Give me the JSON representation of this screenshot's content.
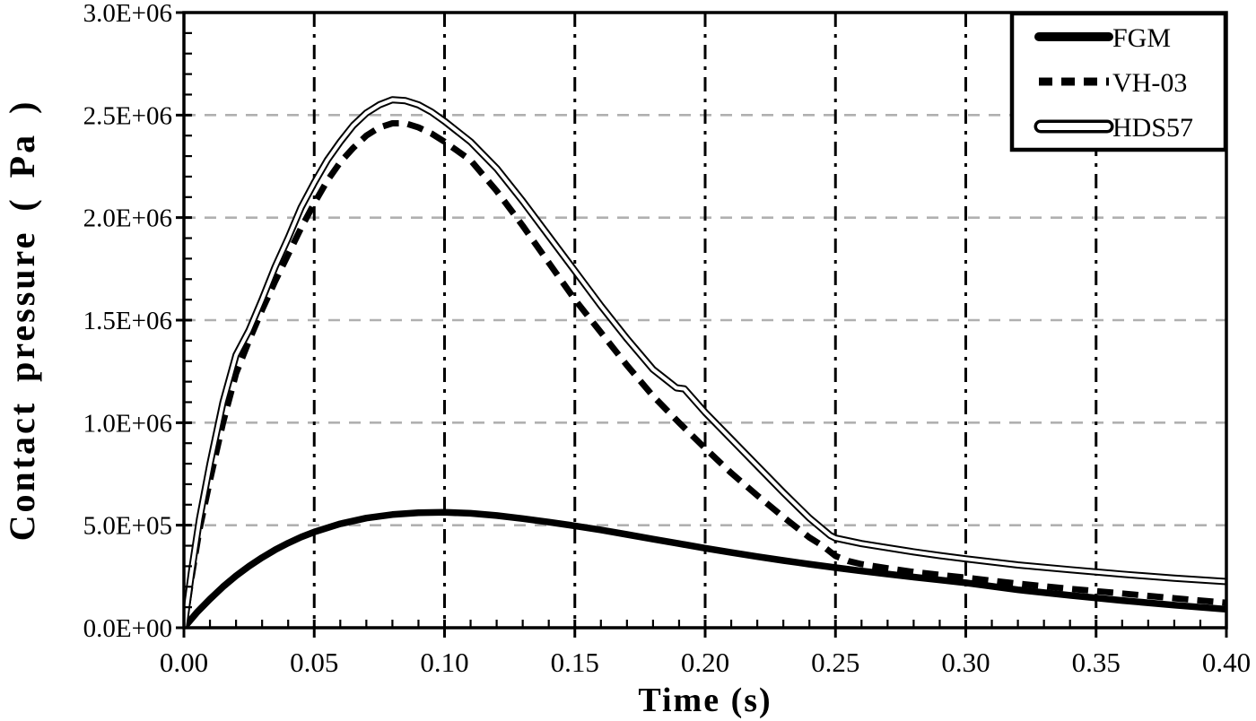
{
  "figure": {
    "background": "#ffffff",
    "axis_color": "#000000",
    "h_grid_color": "#b0b0b0",
    "v_grid_color": "#000000"
  },
  "axes": {
    "x": {
      "title": "Time (s)",
      "min": 0.0,
      "max": 0.4,
      "major_step": 0.05,
      "minor_step": 0.01,
      "tick_labels": [
        "0.00",
        "0.05",
        "0.10",
        "0.15",
        "0.20",
        "0.25",
        "0.30",
        "0.35",
        "0.40"
      ]
    },
    "y": {
      "title": "Contact pressure ( Pa )",
      "min": 0,
      "max": 3000000,
      "major_step": 500000,
      "minor_step": 100000,
      "tick_labels": [
        "0.0E+00",
        "5.0E+05",
        "1.0E+06",
        "1.5E+06",
        "2.0E+06",
        "2.5E+06",
        "3.0E+06"
      ]
    }
  },
  "legend": {
    "items": [
      {
        "label": "FGM",
        "style": "solid-thick"
      },
      {
        "label": "VH-03",
        "style": "dashed-thick"
      },
      {
        "label": "HDS57",
        "style": "double-line"
      }
    ]
  },
  "chart_data": {
    "type": "line",
    "title": "",
    "xlabel": "Time (s)",
    "ylabel": "Contact pressure ( Pa )",
    "xlim": [
      0.0,
      0.4
    ],
    "ylim": [
      0,
      3000000
    ],
    "grid": {
      "horizontal": "gray-dashed at every 5.0E+05",
      "vertical": "black dash-dot at every 0.05"
    },
    "legend_position": "top-right inside plot",
    "series": [
      {
        "name": "FGM",
        "line": {
          "color": "#000000",
          "width": 7.5,
          "dash": "solid"
        },
        "x": [
          0,
          0.005,
          0.01,
          0.015,
          0.02,
          0.025,
          0.03,
          0.035,
          0.04,
          0.045,
          0.05,
          0.06,
          0.07,
          0.08,
          0.09,
          0.1,
          0.11,
          0.12,
          0.13,
          0.14,
          0.15,
          0.16,
          0.17,
          0.18,
          0.19,
          0.2,
          0.21,
          0.22,
          0.23,
          0.24,
          0.25,
          0.26,
          0.27,
          0.28,
          0.29,
          0.3,
          0.32,
          0.34,
          0.36,
          0.38,
          0.4
        ],
        "y": [
          0,
          75000,
          140000,
          200000,
          253000,
          300000,
          342000,
          380000,
          413000,
          442000,
          467000,
          507000,
          535000,
          552000,
          561000,
          563000,
          558000,
          547000,
          532000,
          515000,
          497000,
          477000,
          455000,
          432000,
          410000,
          388000,
          367000,
          347000,
          328000,
          310000,
          293000,
          277000,
          262000,
          247000,
          233000,
          219000,
          185000,
          158000,
          133000,
          110000,
          90000
        ]
      },
      {
        "name": "VH-03",
        "line": {
          "color": "#000000",
          "width": 7,
          "dash": "dashed"
        },
        "x": [
          0,
          0.003,
          0.006,
          0.01,
          0.015,
          0.02,
          0.025,
          0.03,
          0.035,
          0.04,
          0.045,
          0.05,
          0.055,
          0.06,
          0.065,
          0.07,
          0.075,
          0.08,
          0.085,
          0.09,
          0.095,
          0.1,
          0.11,
          0.12,
          0.13,
          0.14,
          0.15,
          0.16,
          0.17,
          0.18,
          0.19,
          0.2,
          0.21,
          0.22,
          0.23,
          0.24,
          0.245,
          0.25,
          0.255,
          0.26,
          0.27,
          0.28,
          0.29,
          0.3,
          0.32,
          0.34,
          0.36,
          0.38,
          0.4
        ],
        "y": [
          0,
          250000,
          480000,
          720000,
          1000000,
          1240000,
          1400000,
          1550000,
          1690000,
          1820000,
          1950000,
          2070000,
          2180000,
          2270000,
          2340000,
          2400000,
          2440000,
          2460000,
          2460000,
          2440000,
          2410000,
          2370000,
          2280000,
          2130000,
          1960000,
          1780000,
          1600000,
          1440000,
          1280000,
          1130000,
          1000000,
          875000,
          755000,
          645000,
          540000,
          440000,
          400000,
          350000,
          325000,
          310000,
          290000,
          272000,
          258000,
          244000,
          215000,
          190000,
          167000,
          144000,
          122000
        ]
      },
      {
        "name": "HDS57",
        "line": {
          "color": "#000000",
          "width": 8,
          "dash": "double-outline"
        },
        "x": [
          0,
          0.003,
          0.006,
          0.01,
          0.015,
          0.02,
          0.025,
          0.03,
          0.035,
          0.04,
          0.045,
          0.05,
          0.055,
          0.06,
          0.065,
          0.07,
          0.075,
          0.08,
          0.085,
          0.09,
          0.095,
          0.1,
          0.11,
          0.12,
          0.13,
          0.14,
          0.15,
          0.16,
          0.17,
          0.18,
          0.185,
          0.189,
          0.192,
          0.2,
          0.21,
          0.22,
          0.23,
          0.24,
          0.248,
          0.25,
          0.26,
          0.27,
          0.28,
          0.29,
          0.3,
          0.32,
          0.34,
          0.36,
          0.38,
          0.4
        ],
        "y": [
          0,
          280000,
          530000,
          800000,
          1100000,
          1330000,
          1450000,
          1600000,
          1760000,
          1900000,
          2050000,
          2170000,
          2280000,
          2370000,
          2450000,
          2510000,
          2550000,
          2575000,
          2570000,
          2550000,
          2515000,
          2470000,
          2370000,
          2240000,
          2080000,
          1910000,
          1740000,
          1570000,
          1410000,
          1260000,
          1210000,
          1170000,
          1165000,
          1050000,
          920000,
          790000,
          660000,
          535000,
          450000,
          437000,
          410000,
          390000,
          370000,
          352000,
          336000,
          306000,
          283000,
          261000,
          242000,
          225000
        ]
      }
    ]
  }
}
